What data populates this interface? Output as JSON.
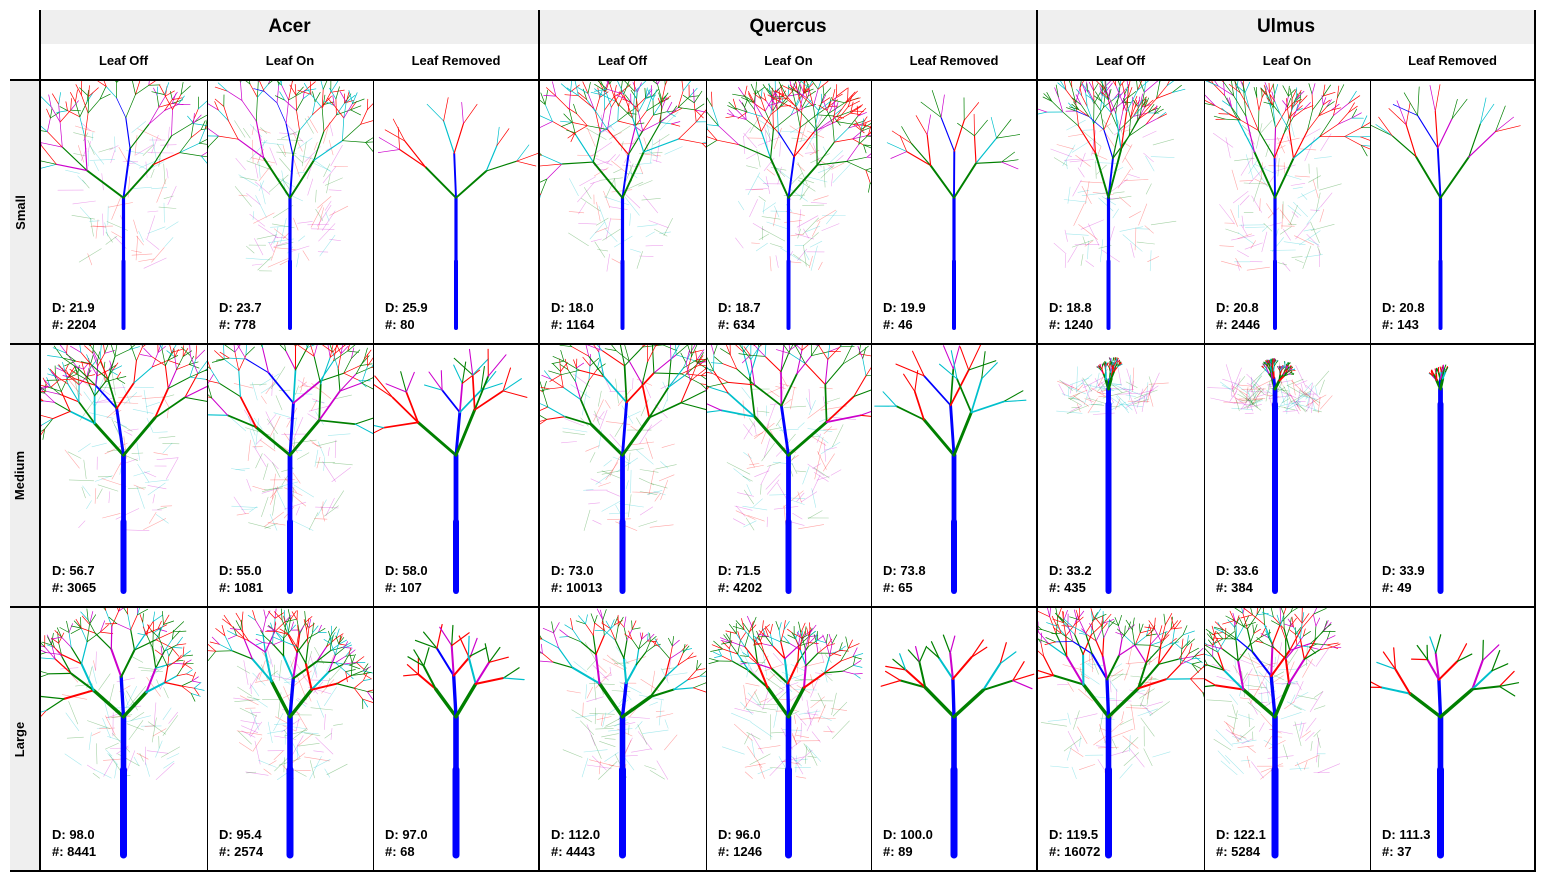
{
  "genera": [
    "Acer",
    "Quercus",
    "Ulmus"
  ],
  "conditions": [
    "Leaf Off",
    "Leaf On",
    "Leaf Removed"
  ],
  "sizes": [
    "Small",
    "Medium",
    "Large"
  ],
  "branch_colors": [
    "#0000ff",
    "#008000",
    "#ff0000",
    "#00c0cc",
    "#cc00cc"
  ],
  "cells": [
    [
      {
        "D": "D: 21.9",
        "N": "#: 2204"
      },
      {
        "D": "D: 23.7",
        "N": "#: 778"
      },
      {
        "D": "D: 25.9",
        "N": "#: 80"
      },
      {
        "D": "D: 18.0",
        "N": "#: 1164"
      },
      {
        "D": "D: 18.7",
        "N": "#: 634"
      },
      {
        "D": "D: 19.9",
        "N": "#: 46"
      },
      {
        "D": "D: 18.8",
        "N": "#: 1240"
      },
      {
        "D": "D: 20.8",
        "N": "#: 2446"
      },
      {
        "D": "D: 20.8",
        "N": "#: 143"
      }
    ],
    [
      {
        "D": "D: 56.7",
        "N": "#: 3065"
      },
      {
        "D": "D: 55.0",
        "N": "#: 1081"
      },
      {
        "D": "D: 58.0",
        "N": "#: 107"
      },
      {
        "D": "D: 73.0",
        "N": "#: 10013"
      },
      {
        "D": "D: 71.5",
        "N": "#: 4202"
      },
      {
        "D": "D: 73.8",
        "N": "#: 65"
      },
      {
        "D": "D: 33.2",
        "N": "#: 435"
      },
      {
        "D": "D: 33.6",
        "N": "#: 384"
      },
      {
        "D": "D: 33.9",
        "N": "#: 49"
      }
    ],
    [
      {
        "D": "D: 98.0",
        "N": "#: 8441"
      },
      {
        "D": "D: 95.4",
        "N": "#: 2574"
      },
      {
        "D": "D: 97.0",
        "N": "#: 68"
      },
      {
        "D": "D: 112.0",
        "N": "#: 4443"
      },
      {
        "D": "D: 96.0",
        "N": "#: 1246"
      },
      {
        "D": "D: 100.0",
        "N": "#: 89"
      },
      {
        "D": "D: 119.5",
        "N": "#: 16072"
      },
      {
        "D": "D: 122.1",
        "N": "#: 5284"
      },
      {
        "D": "D: 111.3",
        "N": "#: 37"
      }
    ]
  ]
}
